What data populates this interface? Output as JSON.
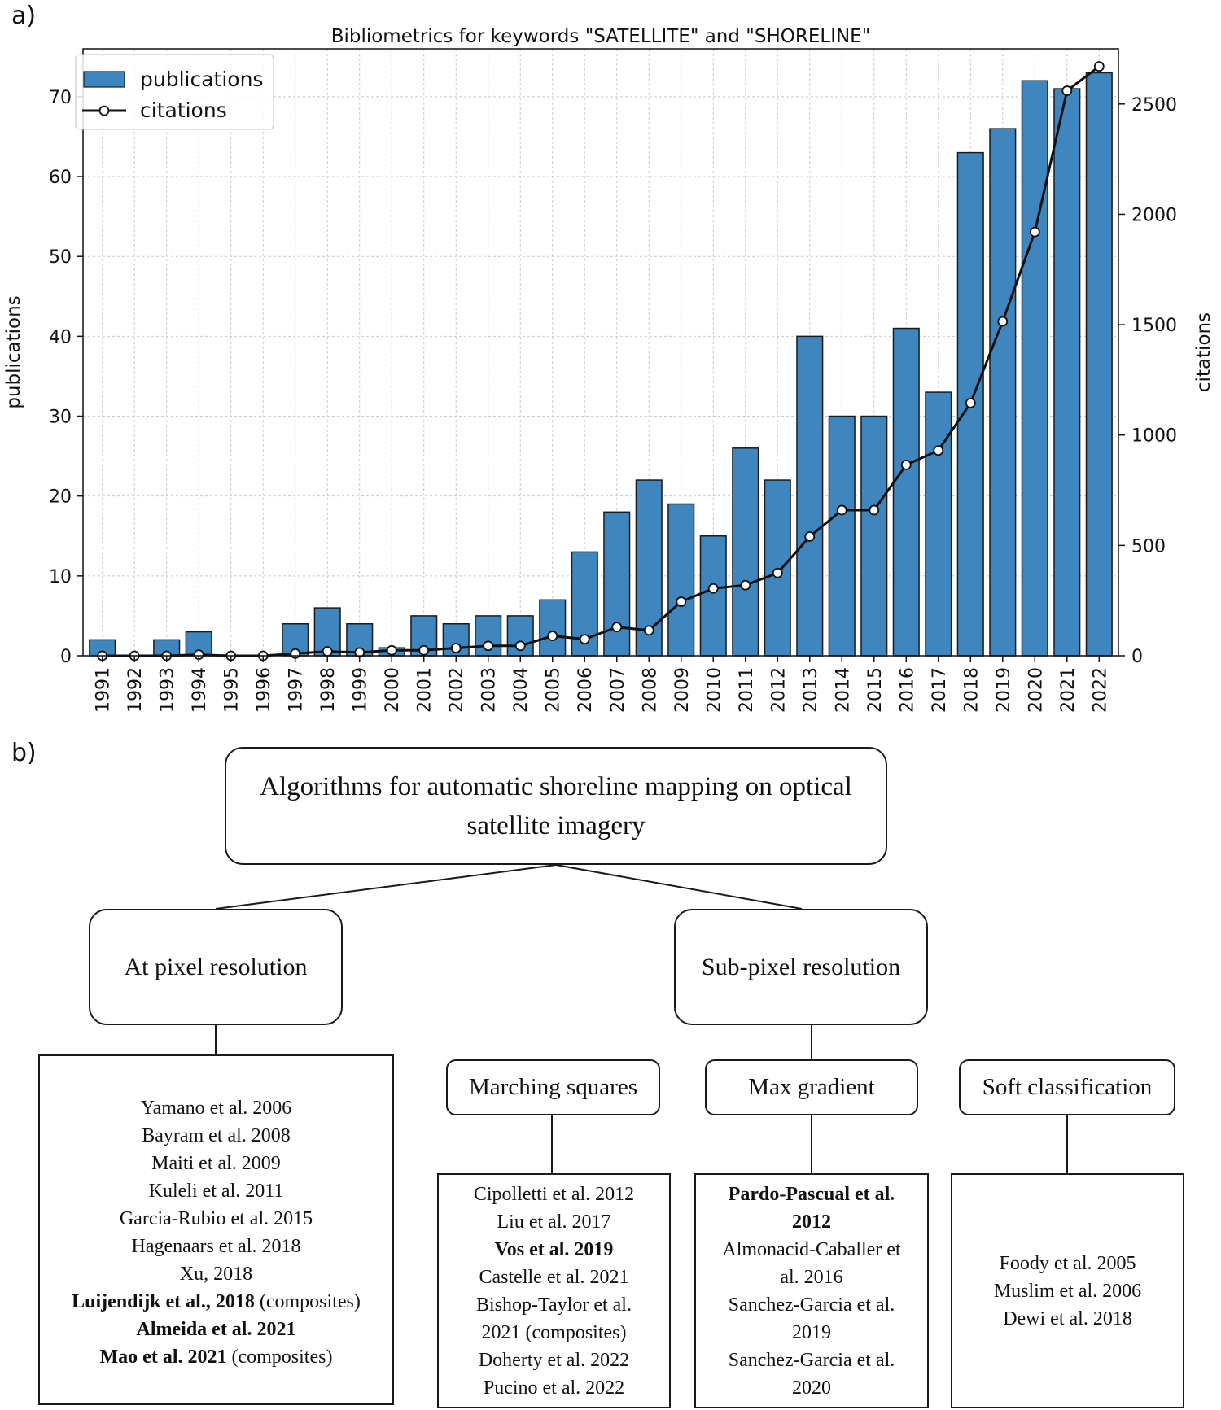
{
  "panel_a_label": "a)",
  "panel_b_label": "b)",
  "chart_data": {
    "type": "bar",
    "title": "Bibliometrics for keywords \"SATELLITE\" and \"SHORELINE\"",
    "xlabel": "",
    "ylabel": "publications",
    "y2label": "citations",
    "ylim": [
      0,
      76
    ],
    "y2lim": [
      0,
      2750
    ],
    "yticks": [
      "0",
      "10",
      "20",
      "30",
      "40",
      "50",
      "60",
      "70"
    ],
    "y2ticks": [
      "0",
      "500",
      "1000",
      "1500",
      "2000",
      "2500"
    ],
    "grid": true,
    "legend_position": "top-left",
    "colors": {
      "bars": "#3f86bf",
      "line": "#111111"
    },
    "categories": [
      "1991",
      "1992",
      "1993",
      "1994",
      "1995",
      "1996",
      "1997",
      "1998",
      "1999",
      "2000",
      "2001",
      "2002",
      "2003",
      "2004",
      "2005",
      "2006",
      "2007",
      "2008",
      "2009",
      "2010",
      "2011",
      "2012",
      "2013",
      "2014",
      "2015",
      "2016",
      "2017",
      "2018",
      "2019",
      "2020",
      "2021",
      "2022"
    ],
    "series": [
      {
        "name": "publications",
        "type": "bar",
        "axis": "left",
        "values": [
          2,
          0,
          2,
          3,
          0,
          0,
          4,
          6,
          4,
          1,
          5,
          4,
          5,
          5,
          7,
          13,
          18,
          22,
          19,
          15,
          26,
          22,
          40,
          30,
          30,
          41,
          33,
          63,
          66,
          72,
          71,
          73
        ]
      },
      {
        "name": "citations",
        "type": "line",
        "axis": "right",
        "values": [
          0,
          0,
          0,
          5,
          0,
          0,
          10,
          20,
          15,
          25,
          25,
          35,
          45,
          45,
          90,
          75,
          130,
          115,
          245,
          305,
          320,
          375,
          540,
          660,
          660,
          865,
          930,
          1145,
          1515,
          1920,
          2560,
          2670
        ]
      }
    ]
  },
  "diagram": {
    "root": "Algorithms for automatic shoreline mapping on optical satellite imagery",
    "pixel": {
      "label": "At pixel resolution",
      "refs": [
        {
          "text": "Yamano et al. 2006"
        },
        {
          "text": "Bayram et al. 2008"
        },
        {
          "text": "Maiti et al. 2009"
        },
        {
          "text": "Kuleli et al. 2011"
        },
        {
          "text": "Garcia-Rubio et al. 2015"
        },
        {
          "text": "Hagenaars et al. 2018"
        },
        {
          "text": "Xu, 2018"
        },
        {
          "bold": "Luijendijk et al., 2018",
          "text": " (composites)"
        },
        {
          "bold": "Almeida et al. 2021"
        },
        {
          "bold": "Mao et al. 2021",
          "text": " (composites)"
        }
      ]
    },
    "subpixel": {
      "label": "Sub-pixel resolution",
      "methods": [
        {
          "label": "Marching squares",
          "refs": [
            {
              "text": "Cipolletti et al. 2012"
            },
            {
              "text": "Liu et al. 2017"
            },
            {
              "bold": "Vos et al. 2019"
            },
            {
              "text": "Castelle et al. 2021"
            },
            {
              "text": "Bishop-Taylor et al."
            },
            {
              "text": "2021 (composites)"
            },
            {
              "text": "Doherty et al. 2022"
            },
            {
              "text": "Pucino et al. 2022"
            }
          ]
        },
        {
          "label": "Max gradient",
          "refs": [
            {
              "bold": "Pardo-Pascual et al."
            },
            {
              "bold": "2012"
            },
            {
              "text": "Almonacid-Caballer et"
            },
            {
              "text": "al. 2016"
            },
            {
              "text": "Sanchez-Garcia et al."
            },
            {
              "text": "2019"
            },
            {
              "text": "Sanchez-Garcia et al."
            },
            {
              "text": "2020"
            }
          ]
        },
        {
          "label": "Soft classification",
          "refs": [
            {
              "text": "Foody et al. 2005"
            },
            {
              "text": "Muslim et al. 2006"
            },
            {
              "text": "Dewi et al. 2018"
            }
          ]
        }
      ]
    }
  }
}
